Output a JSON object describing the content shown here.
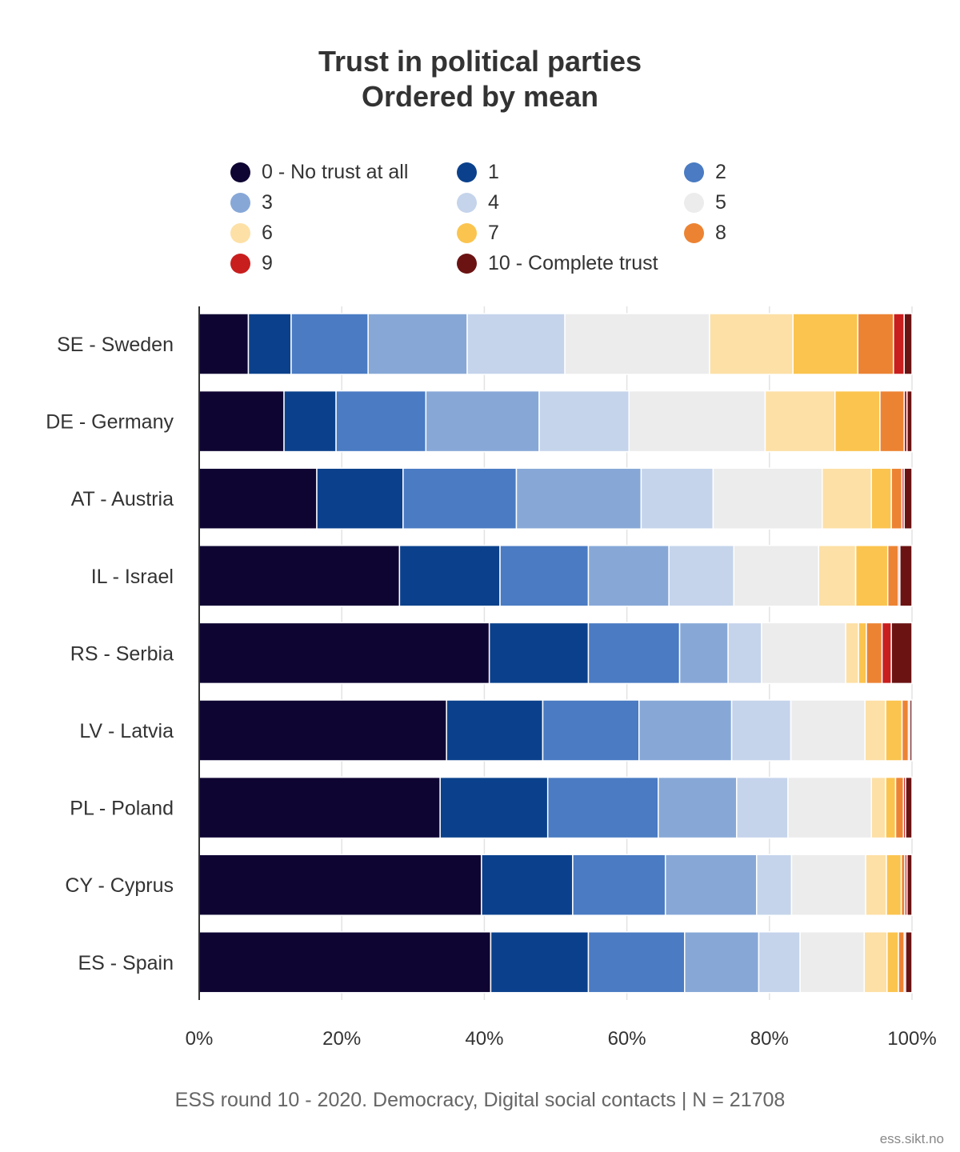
{
  "chart_data": {
    "type": "bar",
    "orientation": "horizontal",
    "stacked": "percent",
    "title": "Trust in political parties",
    "subtitle": "Ordered by mean",
    "xlim": [
      0,
      100
    ],
    "x_ticks": [
      "0%",
      "20%",
      "40%",
      "60%",
      "80%",
      "100%"
    ],
    "x_tick_values": [
      0,
      20,
      40,
      60,
      80,
      100
    ],
    "grid": true,
    "legend_position": "top",
    "categories": [
      "SE - Sweden",
      "DE - Germany",
      "AT - Austria",
      "IL - Israel",
      "RS - Serbia",
      "LV - Latvia",
      "PL - Poland",
      "CY - Cyprus",
      "ES - Spain"
    ],
    "series": [
      {
        "name": "0 - No trust at all",
        "color": "#0f0533",
        "values": [
          6.9,
          11.9,
          16.5,
          28.1,
          40.7,
          34.7,
          33.8,
          39.6,
          40.9
        ]
      },
      {
        "name": "1",
        "color": "#0b418c",
        "values": [
          6.0,
          7.3,
          12.1,
          14.1,
          13.9,
          13.5,
          15.1,
          12.8,
          13.7
        ]
      },
      {
        "name": "2",
        "color": "#4a7bc3",
        "values": [
          10.8,
          12.6,
          15.9,
          12.4,
          12.8,
          13.5,
          15.5,
          13.0,
          13.5
        ]
      },
      {
        "name": "3",
        "color": "#87a8d7",
        "values": [
          13.9,
          15.9,
          17.5,
          11.3,
          6.8,
          13.0,
          11.0,
          12.8,
          10.4
        ]
      },
      {
        "name": "4",
        "color": "#c5d4eb",
        "values": [
          13.7,
          12.6,
          10.1,
          9.1,
          4.7,
          8.3,
          7.2,
          4.9,
          5.8
        ]
      },
      {
        "name": "5",
        "color": "#ececec",
        "values": [
          20.3,
          19.1,
          15.3,
          11.9,
          11.8,
          10.4,
          11.7,
          10.4,
          9.0
        ]
      },
      {
        "name": "6",
        "color": "#fde0a6",
        "values": [
          11.7,
          9.8,
          6.9,
          5.2,
          1.8,
          2.9,
          2.0,
          2.9,
          3.2
        ]
      },
      {
        "name": "7",
        "color": "#fbc44f",
        "values": [
          9.1,
          6.3,
          2.8,
          4.5,
          1.1,
          2.3,
          1.4,
          2.1,
          1.6
        ]
      },
      {
        "name": "8",
        "color": "#ec8333",
        "values": [
          5.0,
          3.4,
          1.5,
          1.5,
          2.2,
          0.9,
          1.1,
          0.5,
          0.8
        ]
      },
      {
        "name": "9",
        "color": "#c91e1e",
        "values": [
          1.5,
          0.4,
          0.3,
          0.2,
          1.3,
          0.2,
          0.3,
          0.3,
          0.2
        ]
      },
      {
        "name": "10 - Complete trust",
        "color": "#6b1313",
        "values": [
          1.1,
          0.7,
          1.1,
          1.7,
          2.9,
          0.3,
          0.9,
          0.7,
          0.9
        ]
      }
    ]
  },
  "source_note": "ESS round 10 - 2020. Democracy, Digital social contacts | N = 21708",
  "credit": "ess.sikt.no"
}
